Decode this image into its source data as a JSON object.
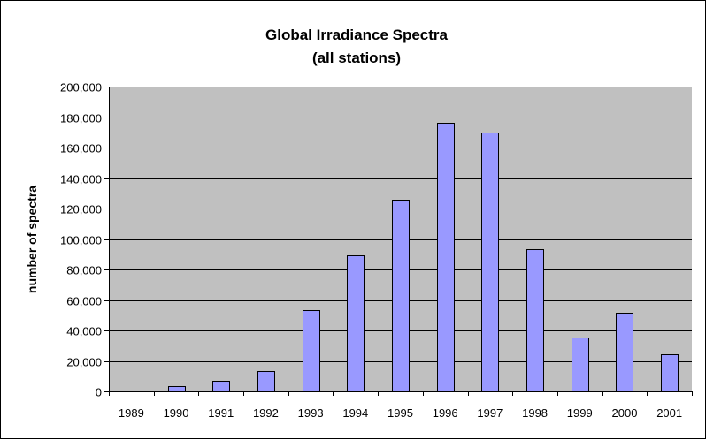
{
  "chart_data": {
    "type": "bar",
    "title": "Global Irradiance Spectra",
    "subtitle": "(all stations)",
    "xlabel": "",
    "ylabel": "number of spectra",
    "categories": [
      "1989",
      "1990",
      "1991",
      "1992",
      "1993",
      "1994",
      "1995",
      "1996",
      "1997",
      "1998",
      "1999",
      "2000",
      "2001"
    ],
    "values": [
      0,
      3500,
      7000,
      13500,
      53500,
      89000,
      126000,
      176000,
      170000,
      93500,
      35500,
      51500,
      24500
    ],
    "ylim": [
      0,
      200000
    ],
    "yticks": [
      0,
      20000,
      40000,
      60000,
      80000,
      100000,
      120000,
      140000,
      160000,
      180000,
      200000
    ],
    "ytick_labels": [
      "0",
      "20,000",
      "40,000",
      "60,000",
      "80,000",
      "100,000",
      "120,000",
      "140,000",
      "160,000",
      "180,000",
      "200,000"
    ],
    "grid": true,
    "legend": "none",
    "colors": {
      "bar_fill": "#9999ff",
      "bar_stroke": "#000000",
      "plot_background": "#c0c0c0",
      "gridline": "#000000"
    }
  }
}
